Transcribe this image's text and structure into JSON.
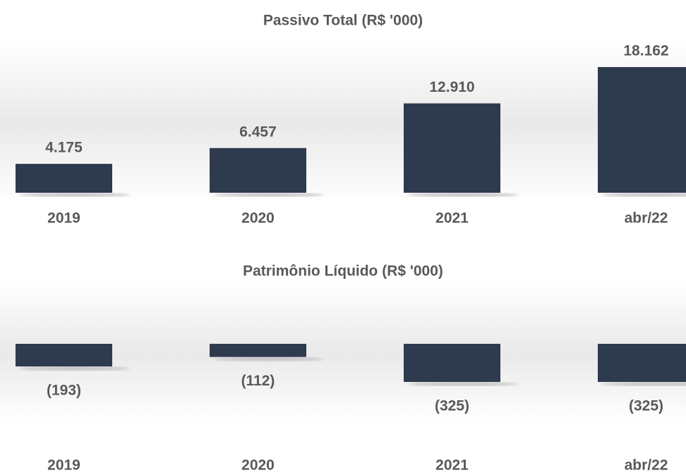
{
  "chart_data": [
    {
      "type": "bar",
      "title": "Passivo Total (R$ '000)",
      "categories": [
        "2019",
        "2020",
        "2021",
        "abr/22"
      ],
      "values": [
        4175,
        6457,
        12910,
        18162
      ],
      "value_labels": [
        "4.175",
        "6.457",
        "12.910",
        "18.162"
      ],
      "color": "#2e3a4e"
    },
    {
      "type": "bar",
      "title": "Patrimônio Líquido (R$ '000)",
      "categories": [
        "2019",
        "2020",
        "2021",
        "abr/22"
      ],
      "values": [
        -193,
        -112,
        -325,
        -325
      ],
      "value_labels": [
        "(193)",
        "(112)",
        "(325)",
        "(325)"
      ],
      "color": "#2e3a4e"
    }
  ]
}
